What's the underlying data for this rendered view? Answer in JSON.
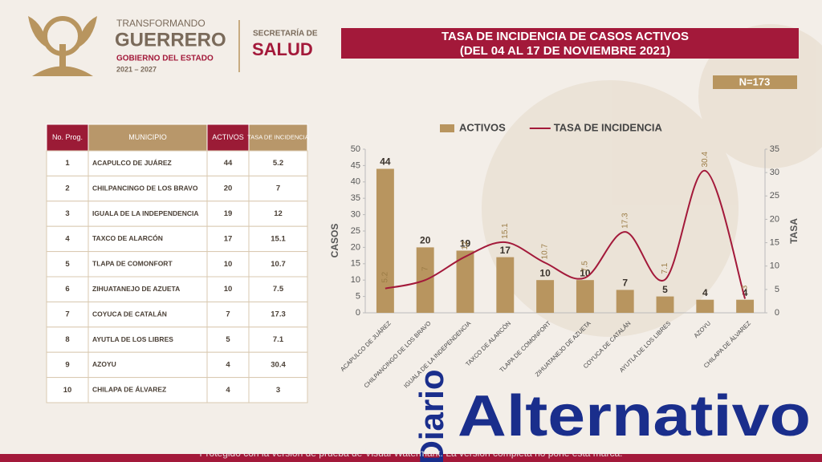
{
  "header": {
    "brand_top": "TRANSFORMANDO",
    "brand": "GUERRERO",
    "government": "GOBIERNO DEL ESTADO",
    "period": "2021 – 2027",
    "secretary_top": "SECRETARÍA DE",
    "secretary": "SALUD"
  },
  "banner": {
    "title": "TASA DE INCIDENCIA DE CASOS ACTIVOS",
    "subtitle": "(DEL 04 AL 17 DE NOVIEMBRE 2021)",
    "total": "N=173"
  },
  "table": {
    "columns": [
      "No. Prog.",
      "MUNICIPIO",
      "ACTIVOS",
      "TASA DE INCIDENCIA"
    ],
    "rows": [
      [
        1,
        "ACAPULCO DE JUÁREZ",
        44,
        5.2
      ],
      [
        2,
        "CHILPANCINGO DE LOS BRAVO",
        20,
        7
      ],
      [
        3,
        "IGUALA DE LA INDEPENDENCIA",
        19,
        12
      ],
      [
        4,
        "TAXCO DE ALARCÓN",
        17,
        15.1
      ],
      [
        5,
        "TLAPA DE COMONFORT",
        10,
        10.7
      ],
      [
        6,
        "ZIHUATANEJO DE AZUETA",
        10,
        7.5
      ],
      [
        7,
        "COYUCA DE CATALÁN",
        7,
        17.3
      ],
      [
        8,
        "AYUTLA DE LOS LIBRES",
        5,
        7.1
      ],
      [
        9,
        "AZOYU",
        4,
        30.4
      ],
      [
        10,
        "CHILAPA DE ÁLVAREZ",
        4,
        3
      ]
    ]
  },
  "chart_data": {
    "type": "bar",
    "ylabel": "CASOS",
    "y2label": "TASA",
    "categories": [
      "ACAPULCO DE JUÁREZ",
      "CHILPANCINGO DE LOS BRAVO",
      "IGUALA DE LA INDEPENDENCIA",
      "TAXCO DE ALARCÓN",
      "TLAPA DE COMONFORT",
      "ZIHUATANEJO DE AZUETA",
      "COYUCA DE CATALÁN",
      "AYUTLA DE LOS LIBRES",
      "AZOYU",
      "CHILAPA DE ÁLVAREZ"
    ],
    "series": [
      {
        "name": "ACTIVOS",
        "type": "bar",
        "color": "#b8955f",
        "values": [
          44,
          20,
          19,
          17,
          10,
          10,
          7,
          5,
          4,
          4
        ]
      },
      {
        "name": "TASA DE INCIDENCIA",
        "type": "line",
        "axis": "y2",
        "color": "#a3193a",
        "values": [
          5.2,
          7,
          12,
          15.1,
          10.7,
          7.5,
          17.3,
          7.1,
          30.4,
          3
        ]
      }
    ],
    "ylim": [
      0,
      50
    ],
    "yticks": [
      0,
      5,
      10,
      15,
      20,
      25,
      30,
      35,
      40,
      45,
      50
    ],
    "y2lim": [
      0,
      35
    ],
    "y2ticks": [
      0,
      5,
      10,
      15,
      20,
      25,
      30,
      35
    ],
    "legend": "top"
  },
  "footer": {
    "watermark": "Protegido con la versión de prueba de Visual Watermark. La versión completa no pone esta marca.",
    "logo_small": "Diario",
    "logo_big": "Alternativo"
  }
}
